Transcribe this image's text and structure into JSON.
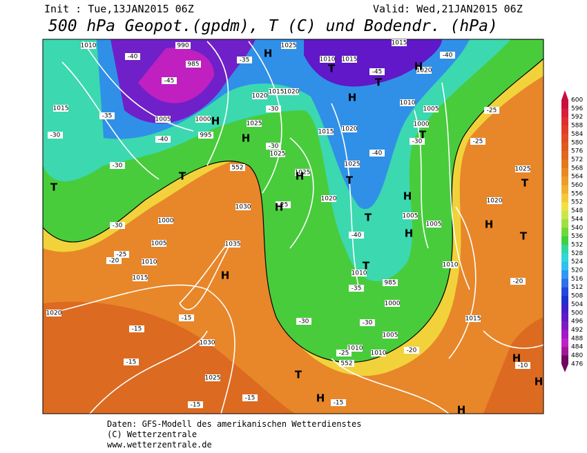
{
  "header": {
    "init": "Init : Tue,13JAN2015 06Z",
    "valid": "Valid: Wed,21JAN2015 06Z",
    "title": "500 hPa Geopot.(gpdm), T (C) und Bodendr. (hPa)"
  },
  "map": {
    "labels": [
      "1010",
      "990",
      "1025",
      "1015",
      "-40",
      "985",
      "-45",
      "-35",
      "1010",
      "1015",
      "-45",
      "1020",
      "-40",
      "1015",
      "-35",
      "1005",
      "1000",
      "995",
      "-40",
      "-30",
      "1015",
      "1020",
      "1020",
      "1025",
      "1015",
      "1020",
      "1010",
      "1005",
      "1000",
      "-30",
      "1025",
      "-30",
      "-40",
      "1025",
      "1025",
      "552",
      "1030",
      "1035",
      "1000",
      "1005",
      "1010",
      "1015",
      "-30",
      "-20",
      "-25",
      "1020",
      "-15",
      "-15",
      "1030",
      "1025",
      "-15",
      "-15",
      "-25",
      "1020",
      "-40",
      "1005",
      "1005",
      "1010",
      "-35",
      "985",
      "1000",
      "-30",
      "-30",
      "1005",
      "1010",
      "1010",
      "-25",
      "552",
      "-20",
      "1015",
      "1010",
      "1020",
      "1025",
      "-25",
      "-25",
      "-20",
      "-10",
      "-15",
      "-15",
      "-30",
      "-30",
      "H",
      "T",
      "H",
      "T",
      "H",
      "T",
      "H",
      "T",
      "H",
      "T",
      "H",
      "H",
      "T",
      "H",
      "T",
      "H",
      "T",
      "H",
      "T",
      "H",
      "T",
      "H",
      "T",
      "H",
      "H",
      "H"
    ]
  },
  "colorbar": {
    "levels": [
      600,
      596,
      592,
      588,
      584,
      580,
      576,
      572,
      568,
      564,
      560,
      556,
      552,
      548,
      544,
      540,
      536,
      532,
      528,
      524,
      520,
      516,
      512,
      508,
      504,
      500,
      496,
      492,
      488,
      484,
      480,
      476
    ],
    "colors": [
      "#c8103c",
      "#d81c3a",
      "#e02c30",
      "#e03c28",
      "#e04c24",
      "#e05a20",
      "#e0681e",
      "#e4781e",
      "#e88a24",
      "#ec9c28",
      "#f0b030",
      "#f4c838",
      "#f0e040",
      "#c8e848",
      "#a0e040",
      "#70d838",
      "#40d040",
      "#30d8a0",
      "#30d8d8",
      "#30c0f0",
      "#3098f0",
      "#3070e8",
      "#2048e0",
      "#2030d0",
      "#4020c8",
      "#6018c8",
      "#8018c0",
      "#a018c8",
      "#c020c8",
      "#a01898",
      "#700860"
    ]
  },
  "footer": [
    "Daten: GFS-Modell des amerikanischen Wetterdienstes",
    "(C) Wetterzentrale",
    "www.wetterzentrale.de"
  ]
}
